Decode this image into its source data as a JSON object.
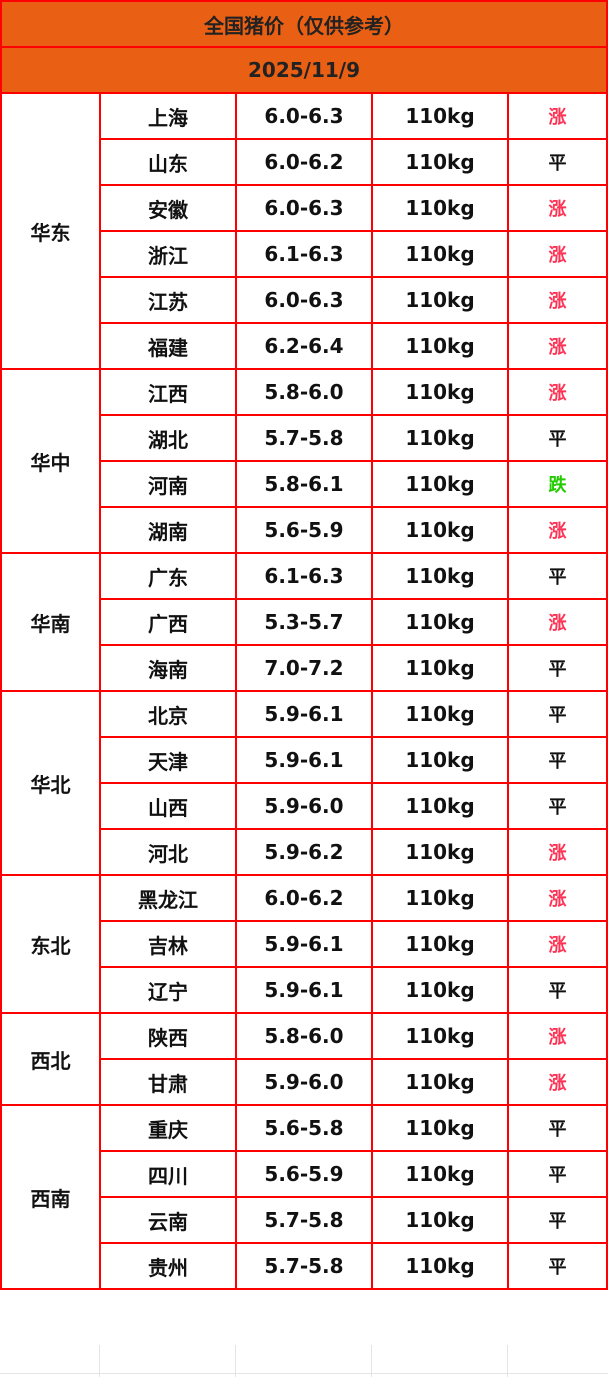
{
  "title": "全国猪价（仅供参考）",
  "date": "2025/11/9",
  "colors": {
    "header_bg": "#e95f14",
    "border": "#ff0000",
    "up": "#ff3355",
    "down": "#22cc00",
    "flat": "#111111"
  },
  "regions": [
    {
      "name": "华东",
      "rows": [
        {
          "province": "上海",
          "price": "6.0-6.3",
          "weight": "110kg",
          "trend": "涨"
        },
        {
          "province": "山东",
          "price": "6.0-6.2",
          "weight": "110kg",
          "trend": "平"
        },
        {
          "province": "安徽",
          "price": "6.0-6.3",
          "weight": "110kg",
          "trend": "涨"
        },
        {
          "province": "浙江",
          "price": "6.1-6.3",
          "weight": "110kg",
          "trend": "涨"
        },
        {
          "province": "江苏",
          "price": "6.0-6.3",
          "weight": "110kg",
          "trend": "涨"
        },
        {
          "province": "福建",
          "price": "6.2-6.4",
          "weight": "110kg",
          "trend": "涨"
        }
      ]
    },
    {
      "name": "华中",
      "rows": [
        {
          "province": "江西",
          "price": "5.8-6.0",
          "weight": "110kg",
          "trend": "涨"
        },
        {
          "province": "湖北",
          "price": "5.7-5.8",
          "weight": "110kg",
          "trend": "平"
        },
        {
          "province": "河南",
          "price": "5.8-6.1",
          "weight": "110kg",
          "trend": "跌"
        },
        {
          "province": "湖南",
          "price": "5.6-5.9",
          "weight": "110kg",
          "trend": "涨"
        }
      ]
    },
    {
      "name": "华南",
      "rows": [
        {
          "province": "广东",
          "price": "6.1-6.3",
          "weight": "110kg",
          "trend": "平"
        },
        {
          "province": "广西",
          "price": "5.3-5.7",
          "weight": "110kg",
          "trend": "涨"
        },
        {
          "province": "海南",
          "price": "7.0-7.2",
          "weight": "110kg",
          "trend": "平"
        }
      ]
    },
    {
      "name": "华北",
      "rows": [
        {
          "province": "北京",
          "price": "5.9-6.1",
          "weight": "110kg",
          "trend": "平"
        },
        {
          "province": "天津",
          "price": "5.9-6.1",
          "weight": "110kg",
          "trend": "平"
        },
        {
          "province": "山西",
          "price": "5.9-6.0",
          "weight": "110kg",
          "trend": "平"
        },
        {
          "province": "河北",
          "price": "5.9-6.2",
          "weight": "110kg",
          "trend": "涨"
        }
      ]
    },
    {
      "name": "东北",
      "rows": [
        {
          "province": "黑龙江",
          "price": "6.0-6.2",
          "weight": "110kg",
          "trend": "涨"
        },
        {
          "province": "吉林",
          "price": "5.9-6.1",
          "weight": "110kg",
          "trend": "涨"
        },
        {
          "province": "辽宁",
          "price": "5.9-6.1",
          "weight": "110kg",
          "trend": "平"
        }
      ]
    },
    {
      "name": "西北",
      "rows": [
        {
          "province": "陕西",
          "price": "5.8-6.0",
          "weight": "110kg",
          "trend": "涨"
        },
        {
          "province": "甘肃",
          "price": "5.9-6.0",
          "weight": "110kg",
          "trend": "涨"
        }
      ]
    },
    {
      "name": "西南",
      "rows": [
        {
          "province": "重庆",
          "price": "5.6-5.8",
          "weight": "110kg",
          "trend": "平"
        },
        {
          "province": "四川",
          "price": "5.6-5.9",
          "weight": "110kg",
          "trend": "平"
        },
        {
          "province": "云南",
          "price": "5.7-5.8",
          "weight": "110kg",
          "trend": "平"
        },
        {
          "province": "贵州",
          "price": "5.7-5.8",
          "weight": "110kg",
          "trend": "平"
        }
      ]
    }
  ]
}
